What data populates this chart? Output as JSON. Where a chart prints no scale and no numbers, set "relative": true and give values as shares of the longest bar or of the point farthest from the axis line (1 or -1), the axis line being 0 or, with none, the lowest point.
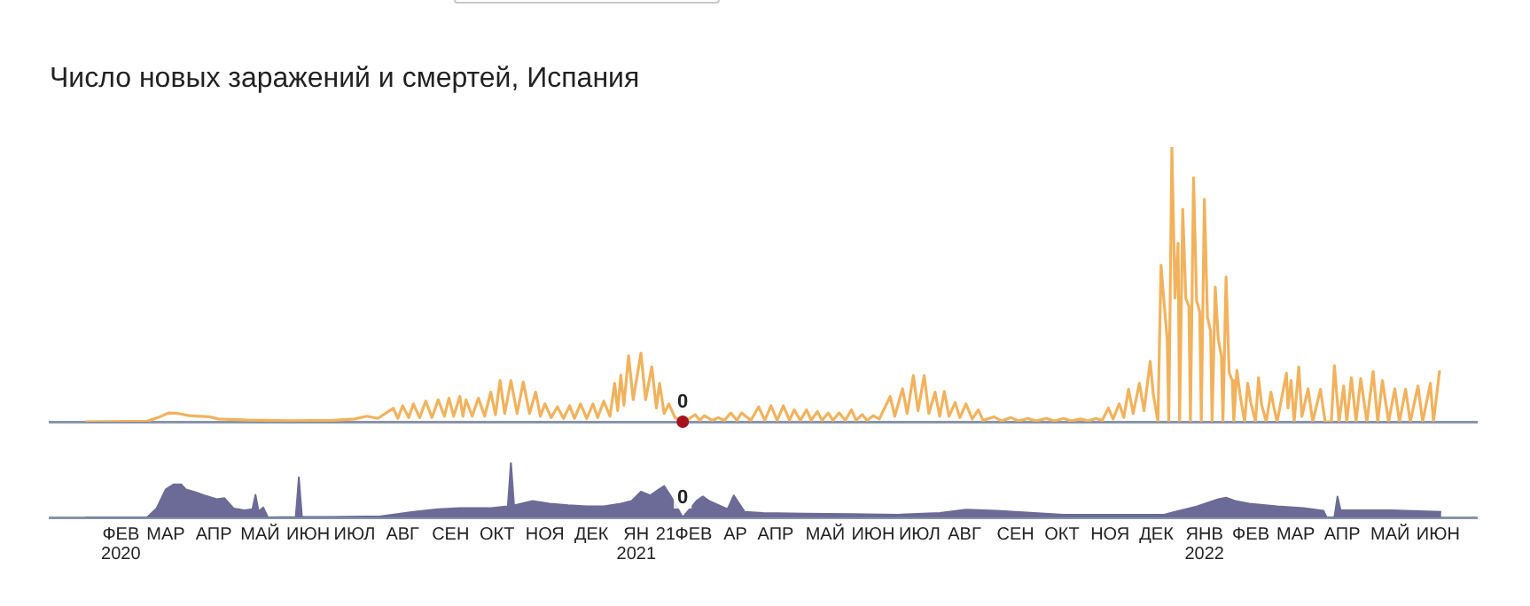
{
  "chart_data": [
    {
      "type": "line",
      "title": "Число новых заражений и смертей, Испания",
      "relative": true,
      "color": "#f2b25c",
      "xlim": [
        "2019-12-31",
        "2022-07-10"
      ],
      "tick_labels": false,
      "annotations": [
        {
          "text": "0",
          "x": "2021-02-12",
          "y": 0
        }
      ],
      "x": [
        "2020-01-23",
        "2020-03-03",
        "2020-03-10",
        "2020-03-17",
        "2020-03-23",
        "2020-03-30",
        "2020-04-06",
        "2020-04-12",
        "2020-04-18",
        "2020-05-07",
        "2020-06-05",
        "2020-07-01",
        "2020-07-15",
        "2020-07-23",
        "2020-07-30",
        "2020-08-09",
        "2020-08-12",
        "2020-08-15",
        "2020-08-19",
        "2020-08-22",
        "2020-08-26",
        "2020-08-30",
        "2020-09-03",
        "2020-09-07",
        "2020-09-11",
        "2020-09-14",
        "2020-09-17",
        "2020-09-21",
        "2020-09-23",
        "2020-09-25",
        "2020-09-29",
        "2020-10-03",
        "2020-10-07",
        "2020-10-11",
        "2020-10-14",
        "2020-10-17",
        "2020-10-20",
        "2020-10-24",
        "2020-10-28",
        "2020-11-01",
        "2020-11-05",
        "2020-11-09",
        "2020-11-12",
        "2020-11-15",
        "2020-11-19",
        "2020-11-23",
        "2020-11-27",
        "2020-12-01",
        "2020-12-04",
        "2020-12-08",
        "2020-12-12",
        "2020-12-16",
        "2020-12-19",
        "2020-12-23",
        "2020-12-27",
        "2020-12-30",
        "2021-01-01",
        "2021-01-03",
        "2021-01-05",
        "2021-01-08",
        "2021-01-11",
        "2021-01-16",
        "2021-01-19",
        "2021-01-23",
        "2021-01-26",
        "2021-01-28",
        "2021-01-31",
        "2021-02-03",
        "2021-02-07",
        "2021-02-12",
        "2021-02-16",
        "2021-02-20",
        "2021-02-23",
        "2021-02-26",
        "2021-03-03",
        "2021-03-07",
        "2021-03-11",
        "2021-03-15",
        "2021-03-19",
        "2021-03-22",
        "2021-03-28",
        "2021-04-02",
        "2021-04-06",
        "2021-04-10",
        "2021-04-14",
        "2021-04-18",
        "2021-04-22",
        "2021-04-25",
        "2021-04-29",
        "2021-05-03",
        "2021-05-06",
        "2021-05-10",
        "2021-05-13",
        "2021-05-17",
        "2021-05-20",
        "2021-05-24",
        "2021-05-28",
        "2021-06-01",
        "2021-06-04",
        "2021-06-08",
        "2021-06-11",
        "2021-06-15",
        "2021-06-19",
        "2021-06-26",
        "2021-06-29",
        "2021-07-04",
        "2021-07-07",
        "2021-07-11",
        "2021-07-14",
        "2021-07-18",
        "2021-07-21",
        "2021-07-25",
        "2021-07-28",
        "2021-07-31",
        "2021-08-03",
        "2021-08-07",
        "2021-08-10",
        "2021-08-14",
        "2021-08-18",
        "2021-08-22",
        "2021-08-25",
        "2021-09-01",
        "2021-09-06",
        "2021-09-12",
        "2021-09-17",
        "2021-09-23",
        "2021-09-28",
        "2021-10-05",
        "2021-10-10",
        "2021-10-16",
        "2021-10-21",
        "2021-10-27",
        "2021-11-01",
        "2021-11-06",
        "2021-11-10",
        "2021-11-14",
        "2021-11-17",
        "2021-11-21",
        "2021-11-24",
        "2021-11-27",
        "2021-11-30",
        "2021-12-04",
        "2021-12-07",
        "2021-12-11",
        "2021-12-13",
        "2021-12-16",
        "2021-12-18",
        "2021-12-20",
        "2021-12-22",
        "2021-12-23",
        "2021-12-25",
        "2021-12-27",
        "2021-12-29",
        "2021-12-30",
        "2022-01-01",
        "2022-01-03",
        "2022-01-05",
        "2022-01-06",
        "2022-01-08",
        "2022-01-10",
        "2022-01-12",
        "2022-01-13",
        "2022-01-15",
        "2022-01-17",
        "2022-01-19",
        "2022-01-20",
        "2022-01-22",
        "2022-01-24",
        "2022-01-26",
        "2022-01-27",
        "2022-01-29",
        "2022-01-31",
        "2022-02-02",
        "2022-02-03",
        "2022-02-05",
        "2022-02-07",
        "2022-02-10",
        "2022-02-12",
        "2022-02-14",
        "2022-02-17",
        "2022-02-19",
        "2022-02-21",
        "2022-02-24",
        "2022-02-27",
        "2022-03-01",
        "2022-03-03",
        "2022-03-09",
        "2022-03-10",
        "2022-03-12",
        "2022-03-14",
        "2022-03-17",
        "2022-03-19",
        "2022-03-23",
        "2022-03-26",
        "2022-03-31",
        "2022-04-03",
        "2022-04-07",
        "2022-04-09",
        "2022-04-12",
        "2022-04-15",
        "2022-04-17",
        "2022-04-20",
        "2022-04-23",
        "2022-04-26",
        "2022-04-30",
        "2022-05-04",
        "2022-05-07",
        "2022-05-10",
        "2022-05-14",
        "2022-05-18",
        "2022-05-21",
        "2022-05-25",
        "2022-05-28",
        "2022-06-02",
        "2022-06-05",
        "2022-06-10",
        "2022-06-12",
        "2022-06-16"
      ],
      "values": [
        0,
        0.002,
        0.015,
        0.032,
        0.03,
        0.022,
        0.02,
        0.018,
        0.01,
        0.006,
        0.004,
        0.005,
        0.01,
        0.02,
        0.012,
        0.049,
        0.012,
        0.058,
        0.015,
        0.065,
        0.015,
        0.075,
        0.015,
        0.08,
        0.02,
        0.086,
        0.02,
        0.092,
        0.02,
        0.08,
        0.02,
        0.086,
        0.02,
        0.108,
        0.025,
        0.15,
        0.03,
        0.15,
        0.03,
        0.145,
        0.03,
        0.108,
        0.02,
        0.065,
        0.015,
        0.054,
        0.012,
        0.058,
        0.012,
        0.065,
        0.012,
        0.065,
        0.015,
        0.075,
        0.02,
        0.14,
        0.04,
        0.17,
        0.06,
        0.24,
        0.08,
        0.25,
        0.08,
        0.2,
        0.05,
        0.14,
        0.03,
        0.065,
        0.015,
        0,
        0.01,
        0.026,
        0.005,
        0.022,
        0.005,
        0.015,
        0.005,
        0.032,
        0.005,
        0.032,
        0.005,
        0.054,
        0.005,
        0.058,
        0.005,
        0.058,
        0.005,
        0.043,
        0.005,
        0.043,
        0.005,
        0.037,
        0.005,
        0.032,
        0.005,
        0.032,
        0.005,
        0.043,
        0.005,
        0.026,
        0.005,
        0.022,
        0.01,
        0.092,
        0.02,
        0.12,
        0.03,
        0.168,
        0.04,
        0.168,
        0.03,
        0.108,
        0.02,
        0.11,
        0.02,
        0.07,
        0.015,
        0.065,
        0.01,
        0.043,
        0.005,
        0.018,
        0.003,
        0.015,
        0.003,
        0.012,
        0.003,
        0.012,
        0.003,
        0.012,
        0.003,
        0.01,
        0.003,
        0.012,
        0.005,
        0.05,
        0.01,
        0.065,
        0.015,
        0.118,
        0.03,
        0.14,
        0.04,
        0.22,
        0.1,
        0,
        0.57,
        0.43,
        0.3,
        0,
        1,
        0.45,
        0.65,
        0,
        0.774,
        0.45,
        0.42,
        0,
        0.888,
        0.44,
        0.4,
        0,
        0.81,
        0.38,
        0.33,
        0,
        0.49,
        0.3,
        0.24,
        0,
        0.527,
        0.18,
        0.15,
        0,
        0.187,
        0.1,
        0,
        0.14,
        0.07,
        0,
        0.16,
        0.06,
        0,
        0.108,
        0.05,
        0,
        0.176,
        0.05,
        0.15,
        0,
        0.2,
        0.02,
        0.12,
        0,
        0.118,
        0,
        0,
        0.204,
        0,
        0.13,
        0,
        0.16,
        0,
        0.157,
        0,
        0.183,
        0,
        0.15,
        0,
        0.12,
        0,
        0.118,
        0,
        0.13,
        0,
        0.14,
        0,
        0.187
      ]
    },
    {
      "type": "area",
      "relative": true,
      "color": "#6c6b97",
      "xlim": [
        "2019-12-31",
        "2022-07-10"
      ],
      "tick_labels": "x",
      "annotations": [
        {
          "text": "0",
          "x": "2021-02-12",
          "y": 0
        }
      ],
      "xticks": [
        {
          "value": "2020-02-15",
          "label": "ФЕВ 2020"
        },
        {
          "value": "2020-03-15",
          "label": "МАР"
        },
        {
          "value": "2020-04-15",
          "label": "АПР"
        },
        {
          "value": "2020-05-15",
          "label": "МАЙ"
        },
        {
          "value": "2020-06-15",
          "label": "ИЮН"
        },
        {
          "value": "2020-07-15",
          "label": "ИЮЛ"
        },
        {
          "value": "2020-08-15",
          "label": "АВГ"
        },
        {
          "value": "2020-09-15",
          "label": "СЕН"
        },
        {
          "value": "2020-10-15",
          "label": "ОКТ"
        },
        {
          "value": "2020-11-15",
          "label": "НОЯ"
        },
        {
          "value": "2020-12-15",
          "label": "ДЕК"
        },
        {
          "value": "2021-01-13",
          "label": "ЯН 2021"
        },
        {
          "value": "2021-02-01",
          "label": "21"
        },
        {
          "value": "2021-02-19",
          "label": "ФЕВ"
        },
        {
          "value": "2021-03-18",
          "label": "АР"
        },
        {
          "value": "2021-04-13",
          "label": "АПР"
        },
        {
          "value": "2021-05-15",
          "label": "МАЙ"
        },
        {
          "value": "2021-06-15",
          "label": "ИЮН"
        },
        {
          "value": "2021-07-15",
          "label": "ИЮЛ"
        },
        {
          "value": "2021-08-13",
          "label": "АВГ"
        },
        {
          "value": "2021-09-15",
          "label": "СЕН"
        },
        {
          "value": "2021-10-15",
          "label": "ОКТ"
        },
        {
          "value": "2021-11-15",
          "label": "НОЯ"
        },
        {
          "value": "2021-12-15",
          "label": "ДЕК"
        },
        {
          "value": "2022-01-15",
          "label": "ЯНВ 2022"
        },
        {
          "value": "2022-02-14",
          "label": "ФЕВ"
        },
        {
          "value": "2022-03-15",
          "label": "МАР"
        },
        {
          "value": "2022-04-14",
          "label": "АПР"
        },
        {
          "value": "2022-05-15",
          "label": "МАЙ"
        },
        {
          "value": "2022-06-15",
          "label": "ИЮН"
        }
      ],
      "x": [
        "2020-01-23",
        "2020-03-03",
        "2020-03-09",
        "2020-03-15",
        "2020-03-20",
        "2020-03-25",
        "2020-03-28",
        "2020-04-03",
        "2020-04-09",
        "2020-04-17",
        "2020-04-22",
        "2020-04-28",
        "2020-05-05",
        "2020-05-10",
        "2020-05-12",
        "2020-05-14",
        "2020-05-17",
        "2020-05-20",
        "2020-06-07",
        "2020-06-09",
        "2020-06-11",
        "2020-07-01",
        "2020-08-01",
        "2020-08-22",
        "2020-09-07",
        "2020-09-21",
        "2020-10-11",
        "2020-10-22",
        "2020-10-24",
        "2020-10-26",
        "2020-11-07",
        "2020-11-18",
        "2020-11-30",
        "2020-12-12",
        "2020-12-23",
        "2021-01-03",
        "2021-01-10",
        "2021-01-16",
        "2021-01-22",
        "2021-01-27",
        "2021-01-31",
        "2021-02-04",
        "2021-02-12",
        "2021-02-21",
        "2021-02-25",
        "2021-03-01",
        "2021-03-13",
        "2021-03-17",
        "2021-03-24",
        "2021-04-05",
        "2021-05-01",
        "2021-06-01",
        "2021-07-01",
        "2021-07-28",
        "2021-08-14",
        "2021-09-03",
        "2021-10-16",
        "2021-12-20",
        "2021-12-27",
        "2022-01-10",
        "2022-01-24",
        "2022-01-29",
        "2022-02-04",
        "2022-02-13",
        "2022-03-03",
        "2022-03-20",
        "2022-04-02",
        "2022-04-04",
        "2022-04-09",
        "2022-04-11",
        "2022-04-13",
        "2022-05-16",
        "2022-06-17"
      ],
      "values": [
        0,
        0,
        0.16,
        0.51,
        0.6,
        0.6,
        0.51,
        0.46,
        0.4,
        0.33,
        0.35,
        0.16,
        0.13,
        0.15,
        0.41,
        0.11,
        0.18,
        0,
        0.01,
        0.73,
        0.01,
        0.01,
        0.02,
        0.1,
        0.15,
        0.17,
        0.17,
        0.2,
        1,
        0.22,
        0.3,
        0.25,
        0.22,
        0.2,
        0.2,
        0.25,
        0.3,
        0.47,
        0.4,
        0.5,
        0.57,
        0.4,
        0,
        0.3,
        0.38,
        0.3,
        0.15,
        0.4,
        0.1,
        0.08,
        0.07,
        0.06,
        0.05,
        0.08,
        0.14,
        0.12,
        0.05,
        0.05,
        0.1,
        0.2,
        0.33,
        0.36,
        0.3,
        0.25,
        0.2,
        0.17,
        0.12,
        0,
        0,
        0.38,
        0.13,
        0.13,
        0.1
      ]
    }
  ]
}
